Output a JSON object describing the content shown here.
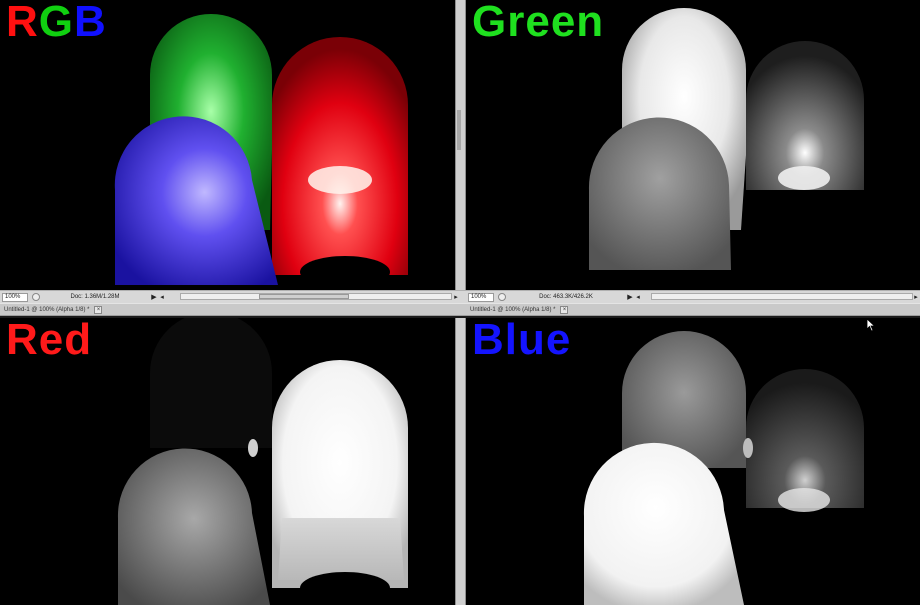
{
  "panes": {
    "rgb": {
      "label_parts": [
        "R",
        "G",
        "B"
      ],
      "label_colors": [
        "#ff1010",
        "#10d010",
        "#1010ff"
      ]
    },
    "green": {
      "label": "Green",
      "label_color": "#1fe01f"
    },
    "red": {
      "label": "Red",
      "label_color": "#ff1a1a"
    },
    "blue": {
      "label": "Blue",
      "label_color": "#1414ff"
    }
  },
  "statusbars": {
    "left": {
      "zoom": "100%",
      "doc": "Doc: 1.36M/1.28M",
      "arrow": "▶",
      "scroll_left": "◂",
      "scroll_right": "▸"
    },
    "right": {
      "zoom": "100%",
      "doc": "Doc: 463.3K/426.2K",
      "arrow": "▶",
      "scroll_left": "◂",
      "scroll_right": "▸"
    }
  },
  "document_tabs": {
    "left": {
      "title": "Untitled-1 @ 100% (Alpha 1/8) *",
      "close": "×"
    },
    "right": {
      "title": "Untitled-1 @ 100% (Alpha 1/8) *",
      "close": "×"
    }
  }
}
